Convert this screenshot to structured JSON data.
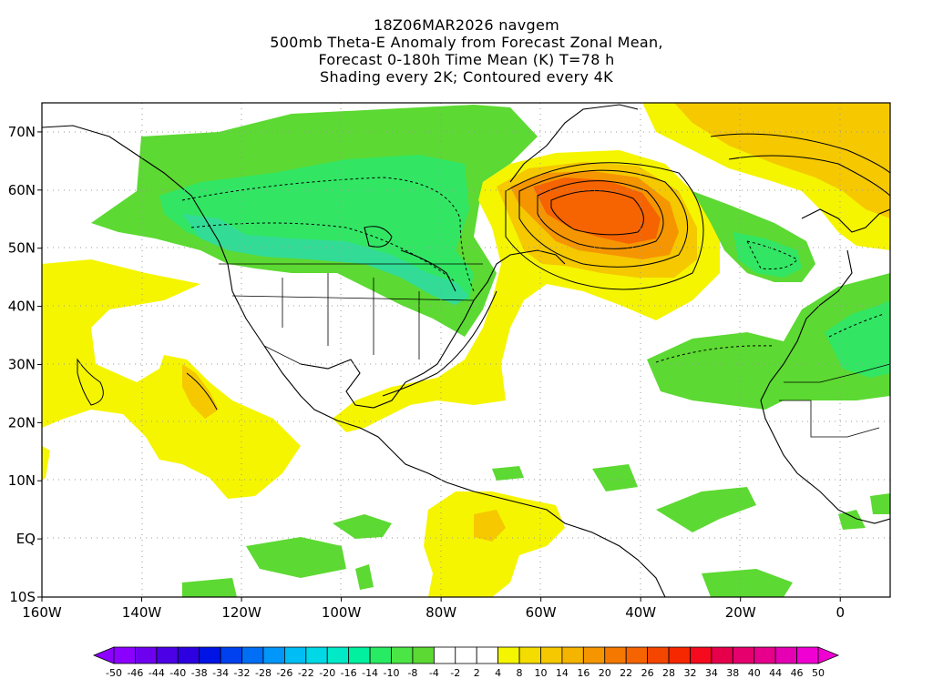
{
  "header": {
    "line1": "18Z06MAR2026 navgem",
    "line2": "500mb Theta-E Anomaly from Forecast Zonal Mean,",
    "line3": "Forecast 0-180h Time Mean (K) T=78 h",
    "line4": "Shading every 2K; Contoured every 4K"
  },
  "map": {
    "lon_range": [
      -160,
      10
    ],
    "lat_range": [
      -10,
      75
    ],
    "lat_ticks": [
      {
        "value": 70,
        "label": "70N"
      },
      {
        "value": 60,
        "label": "60N"
      },
      {
        "value": 50,
        "label": "50N"
      },
      {
        "value": 40,
        "label": "40N"
      },
      {
        "value": 30,
        "label": "30N"
      },
      {
        "value": 20,
        "label": "20N"
      },
      {
        "value": 10,
        "label": "10N"
      },
      {
        "value": 0,
        "label": "EQ"
      },
      {
        "value": -10,
        "label": "10S"
      }
    ],
    "lon_ticks": [
      {
        "value": -160,
        "label": "160W"
      },
      {
        "value": -140,
        "label": "140W"
      },
      {
        "value": -120,
        "label": "120W"
      },
      {
        "value": -100,
        "label": "100W"
      },
      {
        "value": -80,
        "label": "80W"
      },
      {
        "value": -60,
        "label": "60W"
      },
      {
        "value": -40,
        "label": "40W"
      },
      {
        "value": -20,
        "label": "20W"
      },
      {
        "value": 0,
        "label": "0"
      }
    ],
    "grid": "dotted",
    "colors": {
      "yellow": "#f5f500",
      "gold": "#f5c800",
      "orange": "#f59600",
      "red_orange": "#f56400",
      "green": "#5cd932",
      "bright_green": "#32e664",
      "teal": "#32dc96"
    }
  },
  "colorbar": {
    "labels": [
      "-50",
      "-46",
      "-44",
      "-40",
      "-38",
      "-34",
      "-32",
      "-28",
      "-26",
      "-22",
      "-20",
      "-16",
      "-14",
      "-10",
      "-8",
      "-4",
      "-2",
      "2",
      "4",
      "8",
      "10",
      "14",
      "16",
      "20",
      "22",
      "26",
      "28",
      "32",
      "34",
      "38",
      "40",
      "44",
      "46",
      "50"
    ],
    "colors": [
      "#8c00ff",
      "#6e00f0",
      "#4b00e6",
      "#2d00e1",
      "#0014e6",
      "#0041ef",
      "#006ef5",
      "#0096fa",
      "#00bef5",
      "#00d8e6",
      "#00eac8",
      "#00f0a0",
      "#28eb64",
      "#4be646",
      "#5cd932",
      "#ffffff",
      "#ffffff",
      "#ffffff",
      "#f5f500",
      "#f5dc00",
      "#f5c800",
      "#f5b400",
      "#f59600",
      "#f57800",
      "#f56400",
      "#f54600",
      "#f52800",
      "#f50a1e",
      "#e6004b",
      "#e6006e",
      "#e6008c",
      "#e600b4",
      "#f000d2"
    ]
  }
}
